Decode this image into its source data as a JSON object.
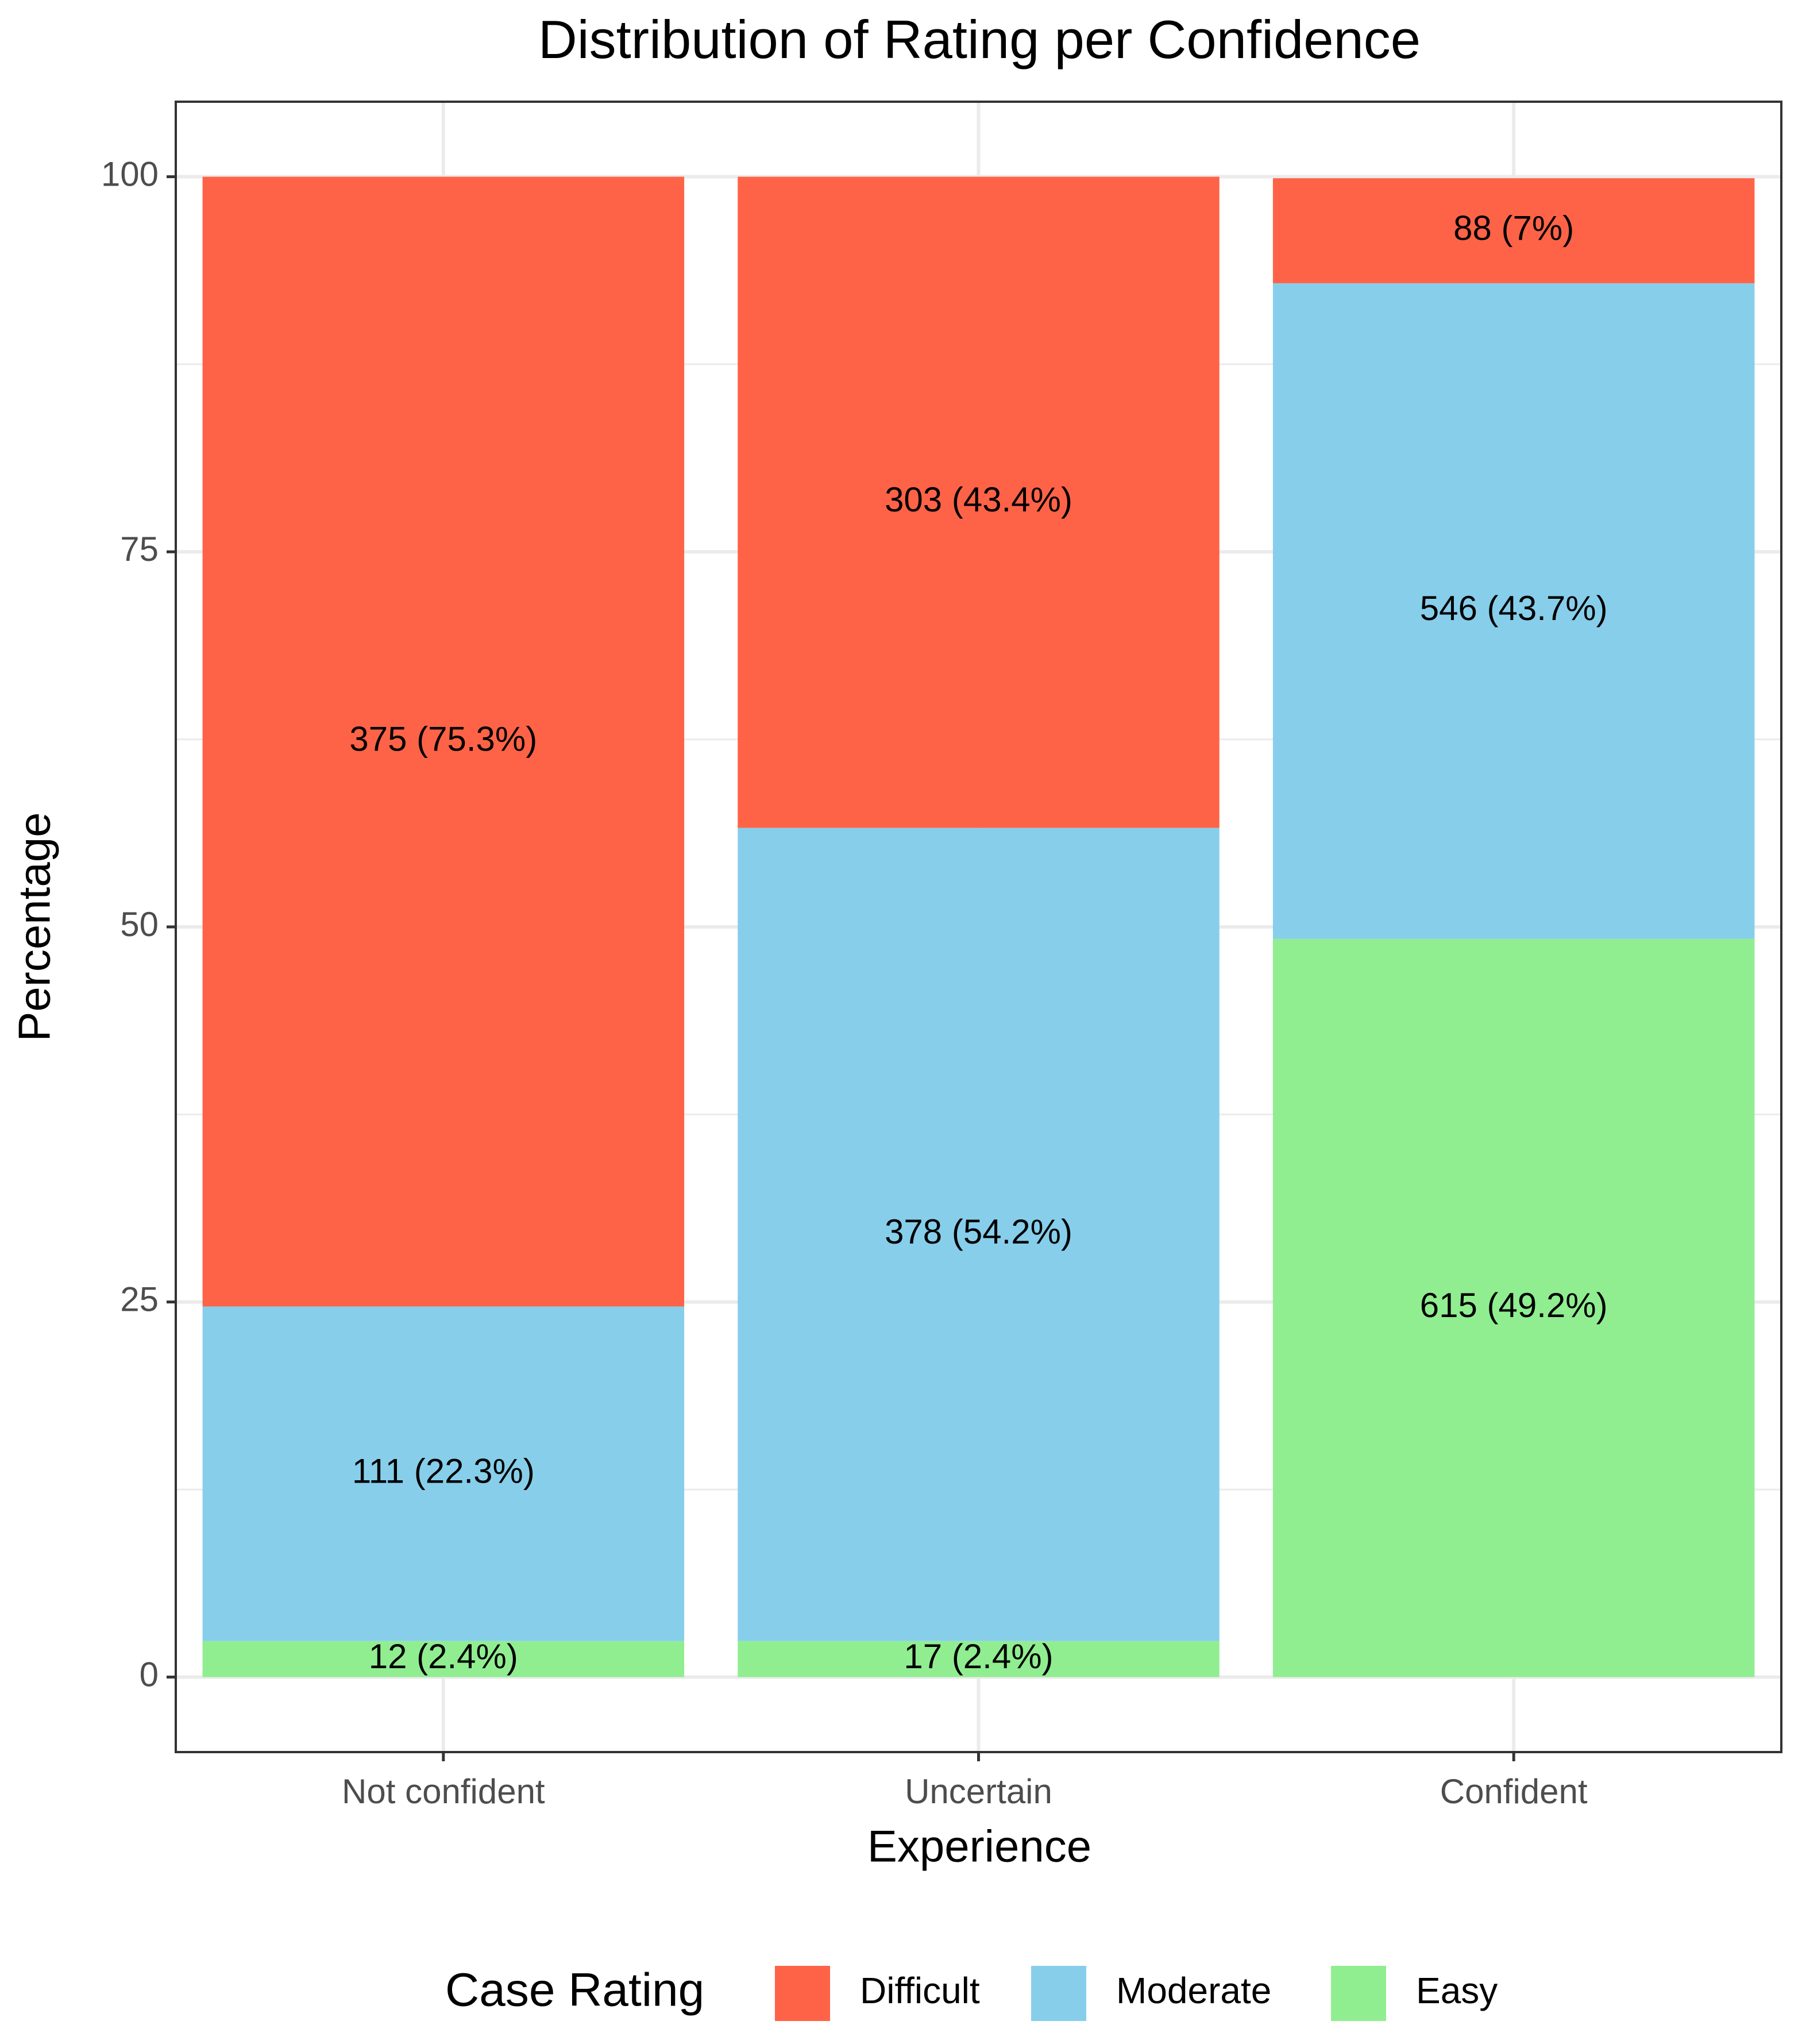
{
  "chart_data": {
    "type": "stacked_bar",
    "title": "Distribution of Rating per Confidence",
    "x_label": "Experience",
    "y_label": "Percentage",
    "categories": [
      "Not confident",
      "Uncertain",
      "Confident"
    ],
    "series": [
      {
        "name": "Difficult",
        "color": "#ff6347",
        "values": [
          75.3,
          43.4,
          7
        ],
        "value_labels": [
          "375 (75.3%)",
          "303 (43.4%)",
          "88 (7%)"
        ]
      },
      {
        "name": "Moderate",
        "color": "#87ceeb",
        "values": [
          22.3,
          54.2,
          43.7
        ],
        "value_labels": [
          "111 (22.3%)",
          "378 (54.2%)",
          "546 (43.7%)"
        ]
      },
      {
        "name": "Easy",
        "color": "#90ee90",
        "values": [
          2.4,
          2.4,
          49.2
        ],
        "value_labels": [
          "12 (2.4%)",
          "17 (2.4%)",
          "615 (49.2%)"
        ]
      }
    ],
    "legend_title": "Case Rating",
    "legend_position": "bottom",
    "ylim": [
      -5,
      105
    ],
    "yticks": [
      0,
      25,
      50,
      75,
      100
    ],
    "minor_yticks": [
      12.5,
      37.5,
      62.5,
      87.5
    ],
    "grid": true
  }
}
